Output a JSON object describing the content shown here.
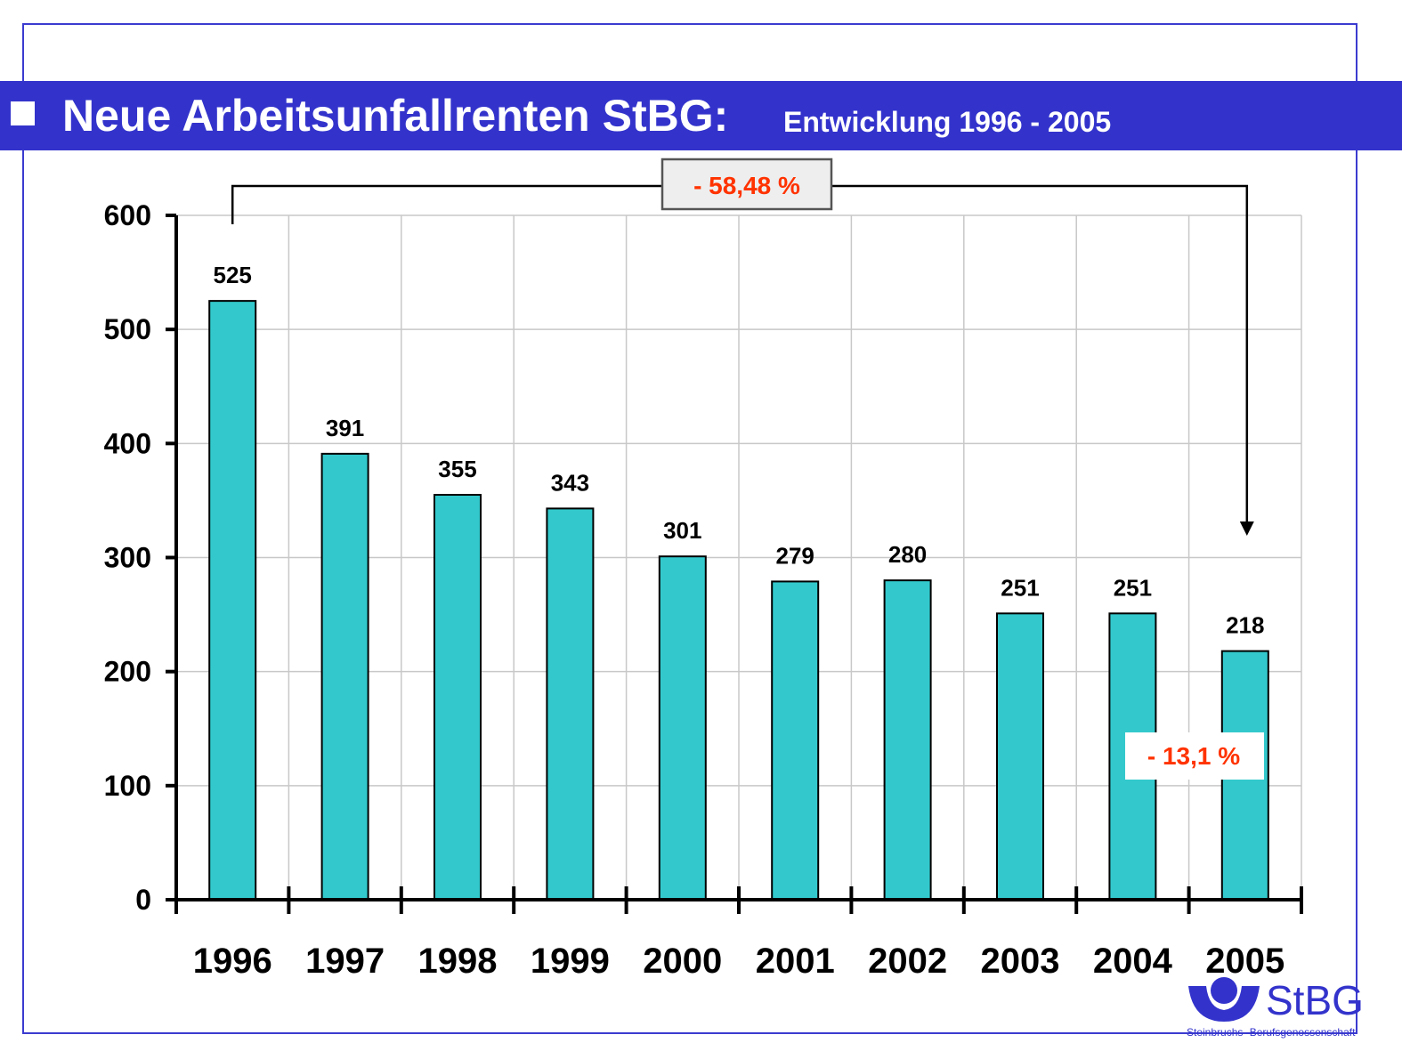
{
  "header": {
    "title": "Neue Arbeitsunfallrenten StBG:",
    "subtitle": "Entwicklung 1996 - 2005"
  },
  "logo": {
    "name": "StBG",
    "subtitle": "Steinbruchs -Berufsgenossenschaft"
  },
  "colors": {
    "bar": "#33c9cc",
    "accent": "#3333cc",
    "annotation": "#ff3300"
  },
  "chart_data": {
    "type": "bar",
    "title": "Neue Arbeitsunfallrenten StBG: Entwicklung 1996 - 2005",
    "categories": [
      "1996",
      "1997",
      "1998",
      "1999",
      "2000",
      "2001",
      "2002",
      "2003",
      "2004",
      "2005"
    ],
    "values": [
      525,
      391,
      355,
      343,
      301,
      279,
      280,
      251,
      251,
      218
    ],
    "yticks": [
      0,
      100,
      200,
      300,
      400,
      500,
      600
    ],
    "ylim": [
      0,
      600
    ],
    "grid": true,
    "xlabel": "",
    "ylabel": "",
    "annotations": [
      {
        "text": "- 58,48 %",
        "from": "1996",
        "to": "2005"
      },
      {
        "text": "- 13,1 %",
        "from": "2004",
        "to": "2005"
      }
    ]
  }
}
